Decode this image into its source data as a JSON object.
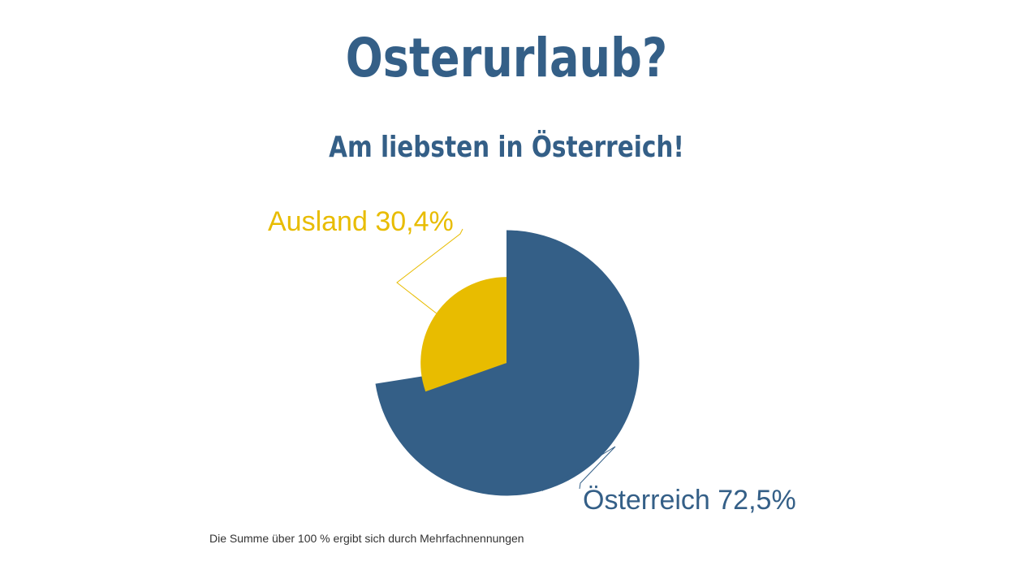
{
  "title": "Osterurlaub?",
  "subtitle": "Am liebsten in Österreich!",
  "footnote": "Die Summe über 100 % ergibt sich durch Mehrfachnennungen",
  "colors": {
    "title": "#345f87",
    "oesterreich": "#345f87",
    "ausland": "#e8bc00"
  },
  "chart_data": {
    "type": "pie",
    "title": "Osterurlaub?",
    "subtitle": "Am liebsten in Österreich!",
    "slices": [
      {
        "label": "Österreich 72,5%",
        "category": "Österreich",
        "value": 72.5,
        "color": "#345f87"
      },
      {
        "label": "Ausland 30,4%",
        "category": "Ausland",
        "value": 30.4,
        "color": "#e8bc00"
      }
    ],
    "note": "Die Summe über 100 % ergibt sich durch Mehrfachnennungen"
  }
}
